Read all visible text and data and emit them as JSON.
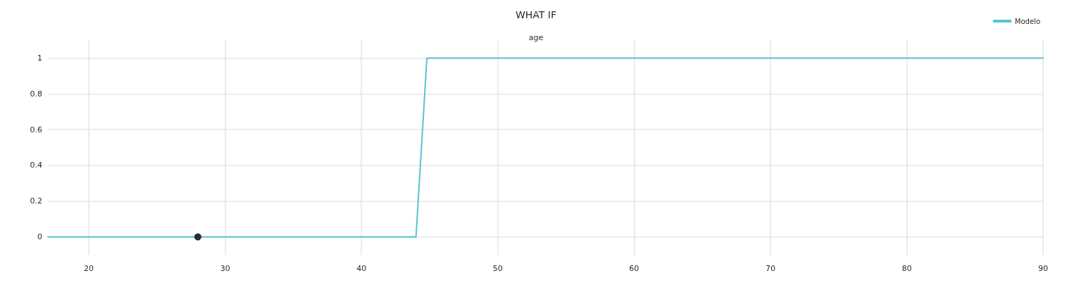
{
  "chart_data": {
    "type": "line",
    "title": "WHAT IF",
    "subtitle": "age",
    "series": [
      {
        "name": "Modelo",
        "color": "#56c5d0",
        "marker": "none",
        "line_style": "solid",
        "x": [
          17,
          44,
          44.8,
          90
        ],
        "values": [
          0,
          0,
          1,
          1
        ]
      },
      {
        "type": "scatter",
        "color": "#2b2d33",
        "marker": "circle",
        "x": [
          28
        ],
        "values": [
          0
        ]
      }
    ],
    "xlim": [
      17,
      90
    ],
    "xticks": [
      20,
      30,
      40,
      50,
      60,
      70,
      80,
      90
    ],
    "ylim": [
      -0.1,
      1.1
    ],
    "yticks": [
      0,
      0.2,
      0.4,
      0.6,
      0.8,
      1
    ],
    "grid": true,
    "legend": "top right"
  }
}
